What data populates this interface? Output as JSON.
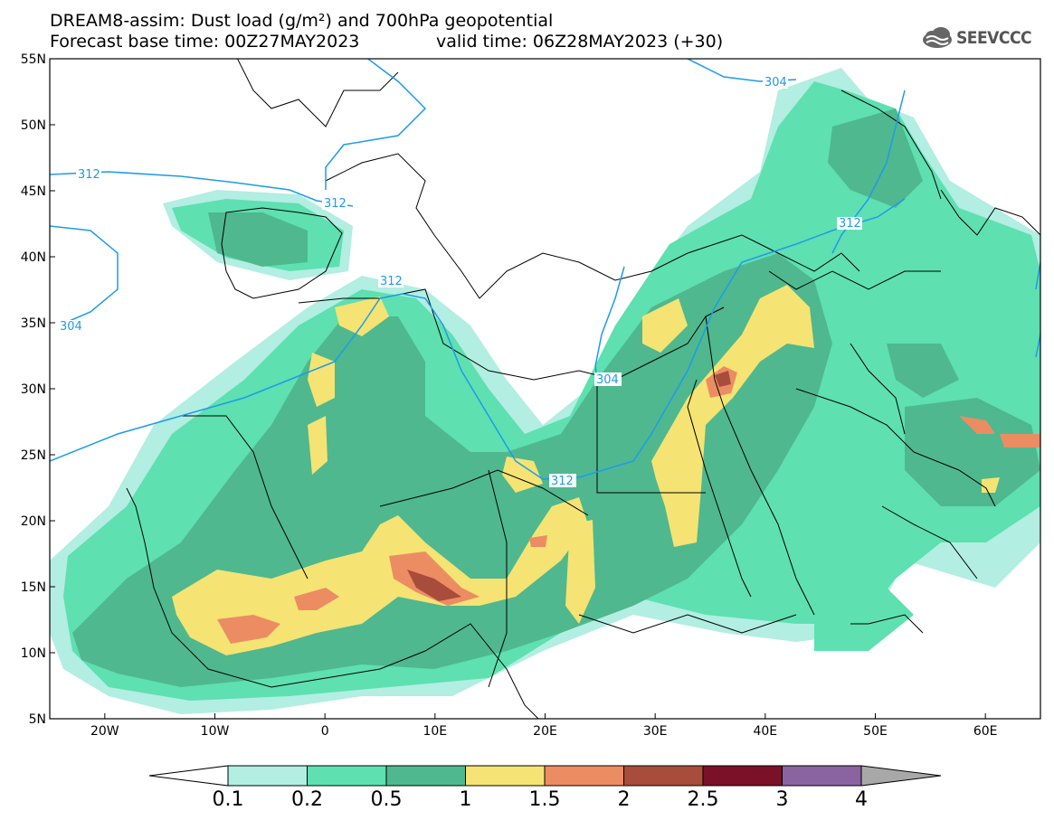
{
  "title_line1": "DREAM8-assim: Dust load (g/m²) and 700hPa geopotential",
  "title_line2a": "Forecast base time: 00Z27MAY2023",
  "title_line2b": "valid time: 06Z28MAY2023 (+30)",
  "logo_text": "SEEVCCC",
  "map": {
    "lon_range": [
      -25,
      65
    ],
    "lat_range": [
      5,
      55
    ],
    "lat_ticks": [
      "5N",
      "10N",
      "15N",
      "20N",
      "25N",
      "30N",
      "35N",
      "40N",
      "45N",
      "50N",
      "55N"
    ],
    "lon_ticks": [
      "20W",
      "10W",
      "0",
      "10E",
      "20E",
      "30E",
      "40E",
      "50E",
      "60E"
    ],
    "contour_labels": [
      "312",
      "312",
      "312",
      "312",
      "312",
      "304",
      "304",
      "304"
    ]
  },
  "colorbar": {
    "levels": [
      "0.1",
      "0.2",
      "0.5",
      "1",
      "1.5",
      "2",
      "2.5",
      "3",
      "4"
    ],
    "colors": [
      "#b2eee2",
      "#5ee0b0",
      "#4fb88e",
      "#f5e373",
      "#ec8c62",
      "#a84c3c",
      "#7a1128",
      "#8a64a0"
    ],
    "low_color": "#ffffff",
    "high_color": "#a8a8a8"
  }
}
